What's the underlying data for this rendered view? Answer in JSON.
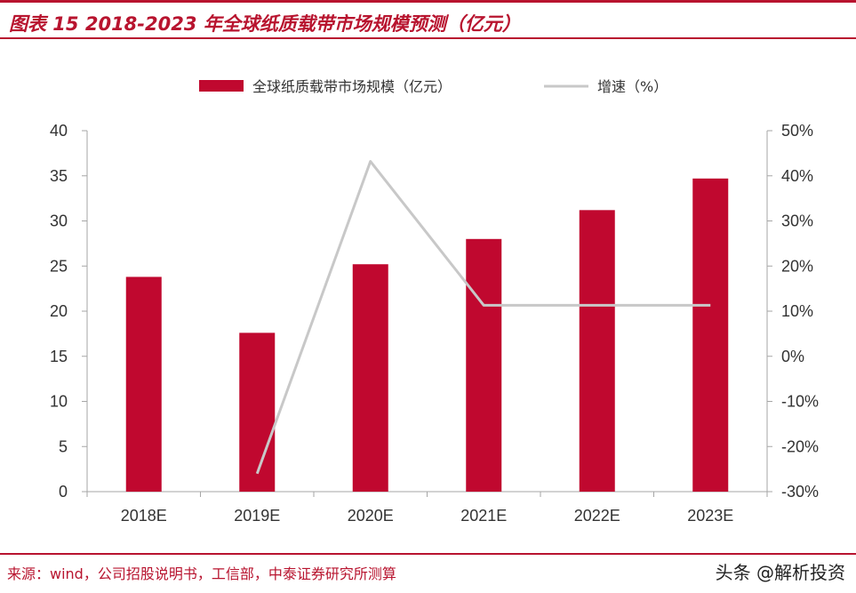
{
  "header": {
    "title": "图表 15 2018-2023 年全球纸质载带市场规模预测（亿元）"
  },
  "footer": {
    "source": "来源：wind，公司招股说明书，工信部，中泰证券研究所测算",
    "watermark": "头条 @解析投资"
  },
  "colors": {
    "accent": "#b8142f",
    "bar": "#c0082f",
    "line": "#c8c8c8",
    "axis": "#a6a6a6",
    "text": "#333333"
  },
  "chart_data": {
    "type": "bar",
    "title": "2018-2023 年全球纸质载带市场规模预测（亿元）",
    "categories": [
      "2018E",
      "2019E",
      "2020E",
      "2021E",
      "2022E",
      "2023E"
    ],
    "series": [
      {
        "name": "全球纸质载带市场规模（亿元）",
        "type": "bar",
        "axis": "left",
        "values": [
          23.8,
          17.6,
          25.2,
          28.0,
          31.2,
          34.7
        ]
      },
      {
        "name": "增速（%）",
        "type": "line",
        "axis": "right",
        "values": [
          null,
          -26.0,
          43.2,
          11.3,
          11.3,
          11.3
        ]
      }
    ],
    "y_left": {
      "min": 0,
      "max": 40,
      "step": 5,
      "tick_labels": [
        "0",
        "5",
        "10",
        "15",
        "20",
        "25",
        "30",
        "35",
        "40"
      ]
    },
    "y_right": {
      "min": -30,
      "max": 50,
      "step": 10,
      "tick_labels": [
        "-30%",
        "-20%",
        "-10%",
        "0%",
        "10%",
        "20%",
        "30%",
        "40%",
        "50%"
      ]
    },
    "legend_position": "top-center",
    "grid": false
  }
}
